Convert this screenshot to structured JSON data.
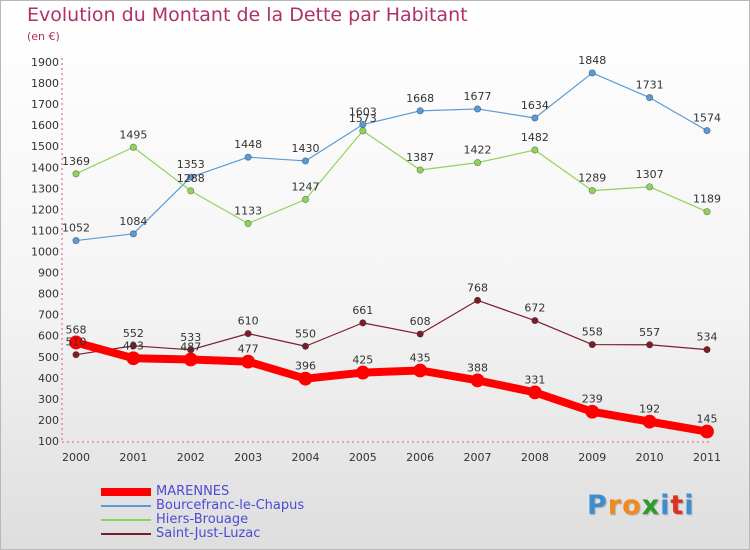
{
  "page": {
    "title": "Evolution du Montant de la Dette par Habitant",
    "subtitle": "(en €)",
    "logo": {
      "text": "Proxiti",
      "colors": [
        "#3b8fd0",
        "#f08a1c",
        "#f08a1c",
        "#2e9b2e",
        "#3b8fd0",
        "#e03020",
        "#3b8fd0"
      ]
    }
  },
  "chart_data": {
    "type": "line",
    "title": "Evolution du Montant de la Dette par Habitant",
    "subtitle": "(en €)",
    "x": [
      "2000",
      "2001",
      "2002",
      "2003",
      "2004",
      "2005",
      "2006",
      "2007",
      "2008",
      "2009",
      "2010",
      "2011"
    ],
    "ylim": [
      100,
      1900
    ],
    "yticks": [
      100,
      200,
      300,
      400,
      500,
      600,
      700,
      800,
      900,
      1000,
      1100,
      1200,
      1300,
      1400,
      1500,
      1600,
      1700,
      1800,
      1900
    ],
    "grid": false,
    "legend_placement": "bottom-left",
    "series": [
      {
        "name": "MARENNES",
        "color": "#ff0000",
        "emphasis": true,
        "values": [
          568,
          493,
          487,
          477,
          396,
          425,
          435,
          388,
          331,
          239,
          192,
          145
        ]
      },
      {
        "name": "Bourcefranc-le-Chapus",
        "color": "#5b9bd5",
        "values": [
          1052,
          1084,
          1353,
          1448,
          1430,
          1603,
          1668,
          1677,
          1634,
          1848,
          1731,
          1574
        ]
      },
      {
        "name": "Hiers-Brouage",
        "color": "#8fd45a",
        "values": [
          1369,
          1495,
          1288,
          1133,
          1247,
          1573,
          1387,
          1422,
          1482,
          1289,
          1307,
          1189
        ]
      },
      {
        "name": "Saint-Just-Luzac",
        "color": "#7b1e2b",
        "values": [
          510,
          552,
          533,
          610,
          550,
          661,
          608,
          768,
          672,
          558,
          557,
          534
        ]
      }
    ]
  }
}
